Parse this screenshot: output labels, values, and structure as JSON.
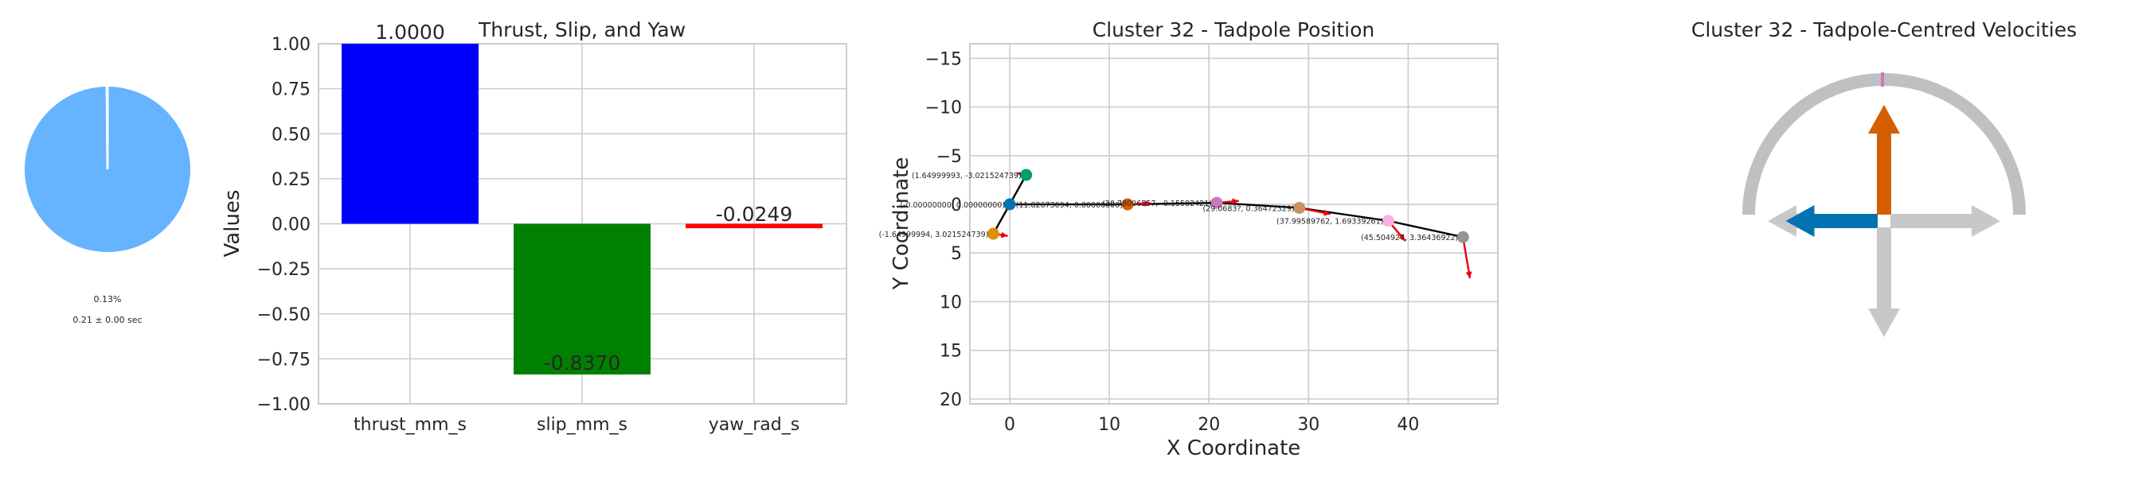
{
  "chart_data": [
    {
      "type": "pie",
      "slices": [
        0.13,
        99.87
      ],
      "colors": [
        "#ffffff",
        "#66b3ff"
      ],
      "labels": [
        "0.13%",
        "0.21 ± 0.00 sec"
      ]
    },
    {
      "type": "bar",
      "title": "Thrust, Slip, and Yaw",
      "ylabel": "Values",
      "categories": [
        "thrust_mm_s",
        "slip_mm_s",
        "yaw_rad_s"
      ],
      "values": [
        1.0,
        -0.837,
        -0.0249
      ],
      "value_labels": [
        "1.0000",
        "-0.8370",
        "-0.0249"
      ],
      "colors": [
        "#0000ff",
        "#008000",
        "#ff0000"
      ],
      "ylim": [
        -1.0,
        1.0
      ],
      "yticks": [
        1.0,
        0.75,
        0.5,
        0.25,
        0.0,
        -0.25,
        -0.5,
        -0.75,
        -1.0
      ],
      "ytick_labels": [
        "1.00",
        "0.75",
        "0.50",
        "0.25",
        "0.00",
        "−0.25",
        "−0.50",
        "−0.75",
        "−1.00"
      ],
      "grid": true
    },
    {
      "type": "scatter",
      "title": "Cluster 32 - Tadpole Position",
      "xlabel": "X Coordinate",
      "ylabel": "Y Coordinate",
      "xlim": [
        -4,
        49
      ],
      "ylim": [
        20.5,
        -16.5
      ],
      "y_inverted": true,
      "xticks": [
        0,
        10,
        20,
        30,
        40
      ],
      "yticks": [
        -15,
        -10,
        -5,
        0,
        5,
        10,
        15,
        20
      ],
      "xtick_labels": [
        "0",
        "10",
        "20",
        "30",
        "40"
      ],
      "ytick_labels": [
        "−15",
        "−10",
        "−5",
        "0",
        "5",
        "10",
        "15",
        "20"
      ],
      "points": [
        {
          "x": 1.64999993,
          "y": -3.02152473,
          "label": "(1.64999993, -3.021524739)",
          "color": "#029e73"
        },
        {
          "x": 0.0,
          "y": 0.0,
          "label": "(-0.00000000, 0.00000000)",
          "color": "#0173b2"
        },
        {
          "x": -1.64999994,
          "y": 3.02152473,
          "label": "(-1.64999994, 3.021524739)",
          "color": "#de8f05"
        },
        {
          "x": 11.82673094,
          "y": 0.0,
          "label": "(11.82673094, 0.00000000)",
          "color": "#d55e00"
        },
        {
          "x": 20.78006557,
          "y": -0.15582421,
          "label": "(20.78006557, -0.15582421)",
          "color": "#cc78bc"
        },
        {
          "x": 29.0683,
          "y": 0.36472329,
          "label": "(29.0683?, 0.36472329)",
          "color": "#ca9161"
        },
        {
          "x": 37.99589762,
          "y": 1.69339261,
          "label": "(37.99589762, 1.69339261)",
          "color": "#fbafe4"
        },
        {
          "x": 45.504927,
          "y": 3.36436922,
          "label": "(45.504927, 3.36436922)",
          "color": "#949494"
        }
      ],
      "path_order": [
        2,
        1,
        0,
        1,
        3,
        4,
        5,
        6,
        7
      ],
      "arrows": [
        {
          "from": [
            1.65,
            -3.02
          ],
          "to": [
            0.7,
            -3.2
          ]
        },
        {
          "from": [
            -1.65,
            3.02
          ],
          "to": [
            -0.2,
            3.25
          ]
        },
        {
          "from": [
            11.8,
            0.0
          ],
          "to": [
            14.2,
            -0.1
          ]
        },
        {
          "from": [
            20.8,
            -0.16
          ],
          "to": [
            23.0,
            -0.35
          ]
        },
        {
          "from": [
            29.0,
            0.36
          ],
          "to": [
            32.2,
            1.0
          ]
        },
        {
          "from": [
            38.0,
            1.69
          ],
          "to": [
            39.7,
            3.75
          ]
        },
        {
          "from": [
            45.5,
            3.36
          ],
          "to": [
            46.2,
            7.6
          ]
        }
      ],
      "grid": true
    },
    {
      "type": "diagram",
      "title": "Cluster 32 - Tadpole-Centred Velocities",
      "arrows": [
        {
          "direction": "up",
          "value": 1.0,
          "color": "#d55e00"
        },
        {
          "direction": "left",
          "value": 0.837,
          "color": "#0173b2"
        },
        {
          "direction": "right",
          "value": 0,
          "color": "#c8c8c8"
        },
        {
          "direction": "down",
          "value": 0,
          "color": "#c8c8c8"
        }
      ],
      "arc_color": "#c0c0c0",
      "yaw_marker_color": "#cc78bc",
      "yaw_value": -0.0249
    }
  ]
}
